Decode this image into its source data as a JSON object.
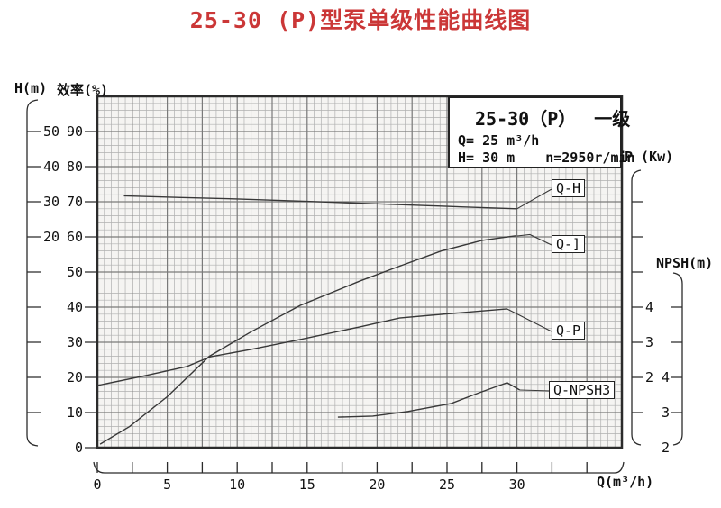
{
  "title": {
    "text": "25-30 (P)型泵单级性能曲线图",
    "color": "#cb3737"
  },
  "legend": {
    "model": "25-30（P）",
    "stage": "一级",
    "q_line": "Q= 25 m³/h",
    "h_line": "H= 30 m",
    "n_line": "n=2950r/min"
  },
  "axes": {
    "h": {
      "label": "H(m)",
      "ticks": [
        50,
        40,
        30,
        20
      ]
    },
    "eff": {
      "label": "效率(%)",
      "ticks": [
        90,
        80,
        70,
        60,
        50,
        40,
        30,
        20,
        10,
        0
      ]
    },
    "p": {
      "label": "P (Kw)",
      "ticks": [
        4,
        3,
        2
      ]
    },
    "npsh": {
      "label": "NPSH(m)",
      "ticks": [
        4,
        3,
        2
      ]
    },
    "q": {
      "label": "Q(m³/h)",
      "ticks": [
        0,
        5,
        10,
        15,
        20,
        25,
        30
      ]
    }
  },
  "colors": {
    "curve": "#383838",
    "grid_minor": "#b0b0b0",
    "grid_major": "#7a7a7a",
    "border": "#2b2b2b",
    "plot_bg": "#f5f4f2"
  },
  "chart_data": {
    "type": "line",
    "title": "25-30 (P)型泵单级性能曲线图",
    "x_label": "Q (m³/h)",
    "x_range": [
      0,
      37.5
    ],
    "grid": "on",
    "rated_point": {
      "Q": "25 m³/h",
      "H": "30 m",
      "n": "2950r/min",
      "stage": "一级"
    },
    "y_axes": {
      "h": {
        "label": "H(m)",
        "range_shown": [
          20,
          50
        ]
      },
      "eff": {
        "label": "效率(%)",
        "range_shown": [
          0,
          90
        ]
      },
      "p": {
        "label": "P (Kw)",
        "range_shown": [
          2,
          4
        ]
      },
      "npsh": {
        "label": "NPSH(m)",
        "range_shown": [
          2,
          4
        ]
      }
    },
    "series": [
      {
        "name": "Q-H",
        "y_axis": "h",
        "points": [
          [
            1.9,
            31.7
          ],
          [
            6,
            31.2
          ],
          [
            10,
            30.8
          ],
          [
            15,
            30.1
          ],
          [
            20,
            29.4
          ],
          [
            25,
            28.7
          ],
          [
            30,
            28.0
          ]
        ]
      },
      {
        "name": "Q-]",
        "y_axis": "eff",
        "points": [
          [
            0.2,
            1
          ],
          [
            2.3,
            6
          ],
          [
            5,
            14.5
          ],
          [
            8,
            26
          ],
          [
            11,
            33
          ],
          [
            14.5,
            40.5
          ],
          [
            18.8,
            47.5
          ],
          [
            21.5,
            51.5
          ],
          [
            24.6,
            56
          ],
          [
            27.5,
            59
          ],
          [
            29.9,
            60.3
          ]
        ]
      },
      {
        "name": "Q-P",
        "y_axis": "p",
        "points": [
          [
            0,
            1.77
          ],
          [
            3.2,
            2.03
          ],
          [
            6.4,
            2.31
          ],
          [
            8.1,
            2.59
          ],
          [
            10.9,
            2.79
          ],
          [
            14.5,
            3.08
          ],
          [
            18.8,
            3.44
          ],
          [
            21.6,
            3.69
          ],
          [
            25.3,
            3.82
          ],
          [
            29.3,
            3.95
          ]
        ]
      },
      {
        "name": "Q-NPSH3",
        "y_axis": "npsh",
        "points": [
          [
            17.2,
            2.87
          ],
          [
            19.7,
            2.9
          ],
          [
            22.2,
            3.03
          ],
          [
            25.3,
            3.26
          ],
          [
            27.2,
            3.55
          ],
          [
            29.3,
            3.85
          ],
          [
            30.2,
            3.64
          ]
        ]
      }
    ]
  }
}
